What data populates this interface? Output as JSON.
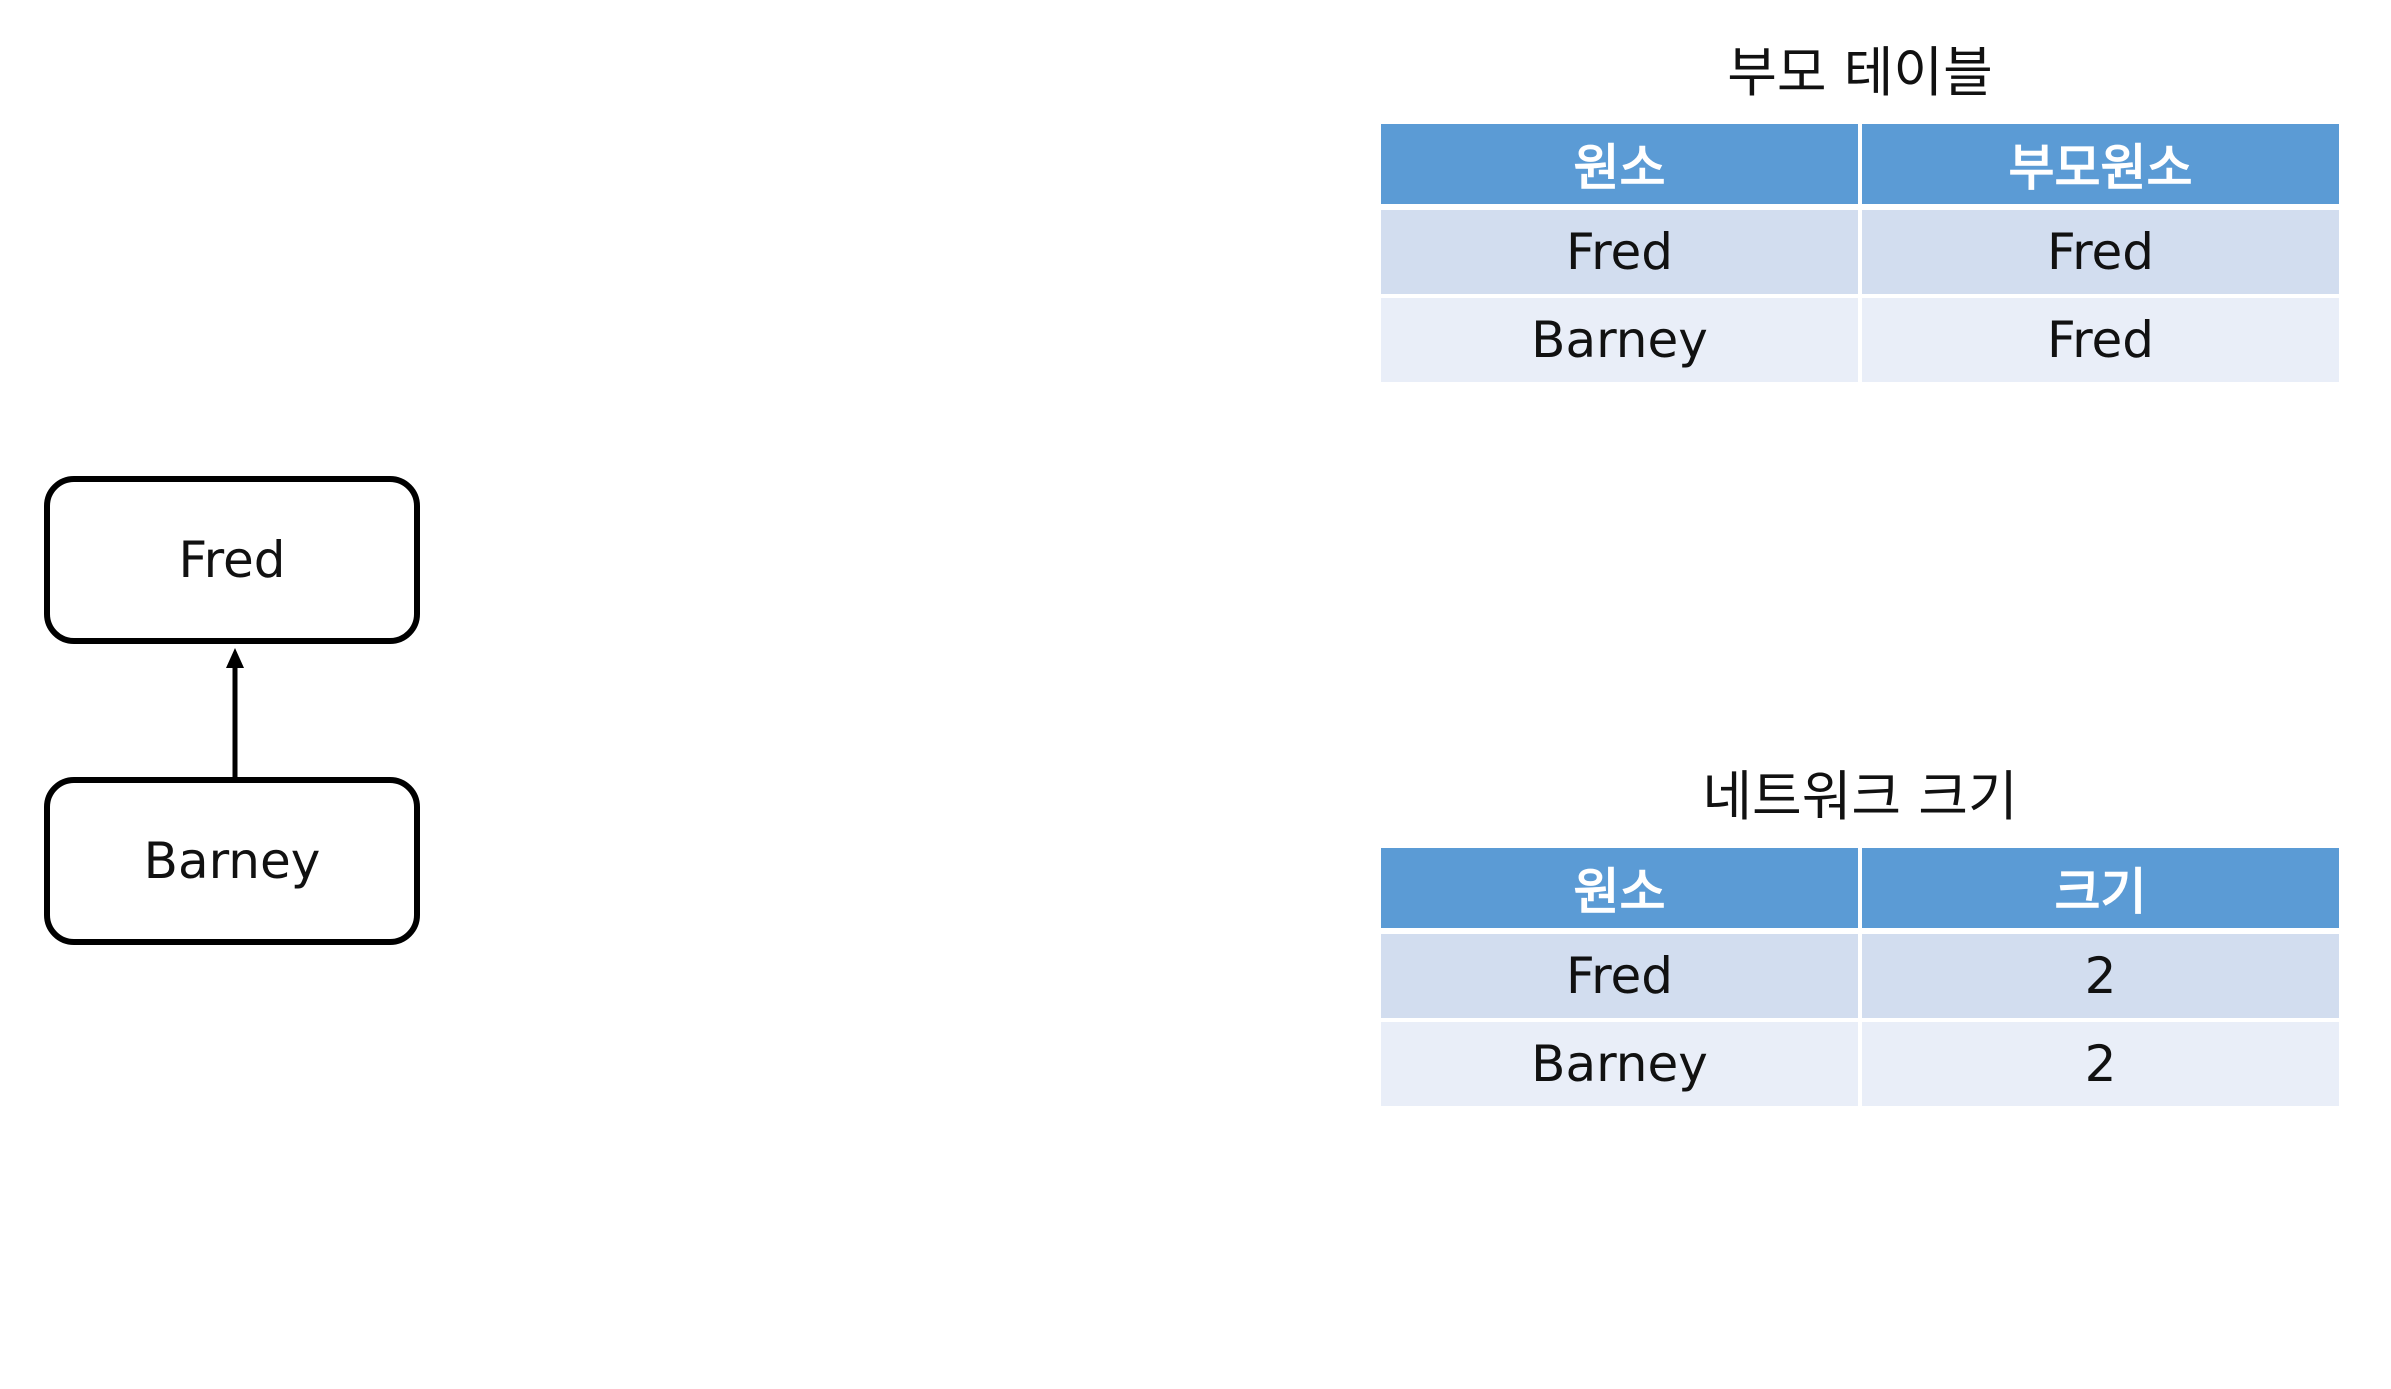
{
  "diagram": {
    "nodes": [
      {
        "id": "fred",
        "label": "Fred"
      },
      {
        "id": "barney",
        "label": "Barney"
      }
    ],
    "edges": [
      {
        "from": "barney",
        "to": "fred"
      }
    ]
  },
  "parent_table": {
    "title": "부모 테이블",
    "headers": [
      "원소",
      "부모원소"
    ],
    "rows": [
      [
        "Fred",
        "Fred"
      ],
      [
        "Barney",
        "Fred"
      ]
    ]
  },
  "size_table": {
    "title": "네트워크 크기",
    "headers": [
      "원소",
      "크기"
    ],
    "rows": [
      [
        "Fred",
        "2"
      ],
      [
        "Barney",
        "2"
      ]
    ]
  },
  "colors": {
    "header_bg": "#5b9bd5",
    "row_dark": "#d2ddef",
    "row_light": "#e9eef8"
  }
}
